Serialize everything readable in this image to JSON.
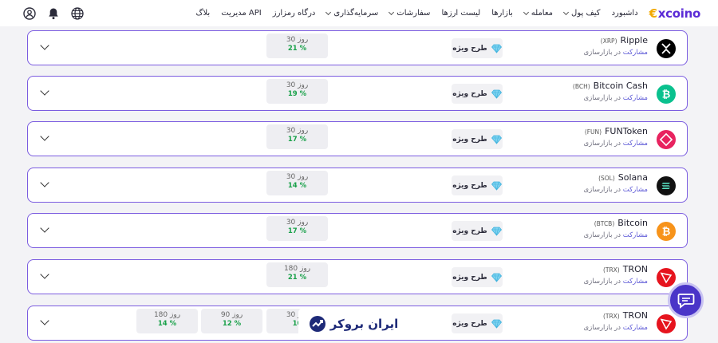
{
  "nav": {
    "logo_text": "xcoino",
    "menu": [
      {
        "label": "داشبورد",
        "dropdown": false
      },
      {
        "label": "کیف پول",
        "dropdown": true
      },
      {
        "label": "معامله",
        "dropdown": true
      },
      {
        "label": "بازارها",
        "dropdown": false
      },
      {
        "label": "لیست ارزها",
        "dropdown": false
      },
      {
        "label": "سفارشات",
        "dropdown": true
      },
      {
        "label": "سرمایه‌گذاری",
        "dropdown": true
      },
      {
        "label": "درگاه رمزارز",
        "dropdown": false
      },
      {
        "label": "مدیریت API",
        "dropdown": false
      },
      {
        "label": "بلاگ",
        "dropdown": false
      }
    ],
    "icons": [
      "user-icon",
      "bell-icon",
      "globe-icon"
    ]
  },
  "row_common": {
    "sub_prefix": "مشارکت",
    "sub_suffix": " در بازارسازی",
    "special_label": "طرح ویژه"
  },
  "rows": [
    {
      "name": "Ripple",
      "symbol": "(XRP)",
      "icon": "xrp-icon",
      "color": "#000000",
      "periods": [
        {
          "days": "30 روز",
          "pct": "21 %"
        }
      ]
    },
    {
      "name": "Bitcoin Cash",
      "symbol": "(BCH)",
      "icon": "bch-icon",
      "color": "#0ac18e",
      "periods": [
        {
          "days": "30 روز",
          "pct": "19 %"
        }
      ]
    },
    {
      "name": "FUNToken",
      "symbol": "(FUN)",
      "icon": "fun-icon",
      "color": "#e8235f",
      "periods": [
        {
          "days": "30 روز",
          "pct": "17 %"
        }
      ]
    },
    {
      "name": "Solana",
      "symbol": "(SOL)",
      "icon": "sol-icon",
      "color": "#111111",
      "periods": [
        {
          "days": "30 روز",
          "pct": "14 %"
        }
      ]
    },
    {
      "name": "Bitcoin",
      "symbol": "(BTCB)",
      "icon": "btc-icon",
      "color": "#f7931a",
      "periods": [
        {
          "days": "30 روز",
          "pct": "17 %"
        }
      ]
    },
    {
      "name": "TRON",
      "symbol": "(TRX)",
      "icon": "trx-icon",
      "color": "#e6141e",
      "periods": [
        {
          "days": "180 روز",
          "pct": "21 %"
        }
      ]
    },
    {
      "name": "TRON",
      "symbol": "(TRX)",
      "icon": "trx-icon",
      "color": "#e6141e",
      "periods": [
        {
          "days": "30 روز",
          "pct": "10"
        },
        {
          "days": "90 روز",
          "pct": "12 %"
        },
        {
          "days": "180 روز",
          "pct": "14 %"
        }
      ]
    }
  ],
  "watermark": "ایران بروکر",
  "colors": {
    "accent": "#5b2bd6",
    "border": "#7b5ce0",
    "positive": "#1aa14a",
    "chat": "#4a35c8"
  }
}
